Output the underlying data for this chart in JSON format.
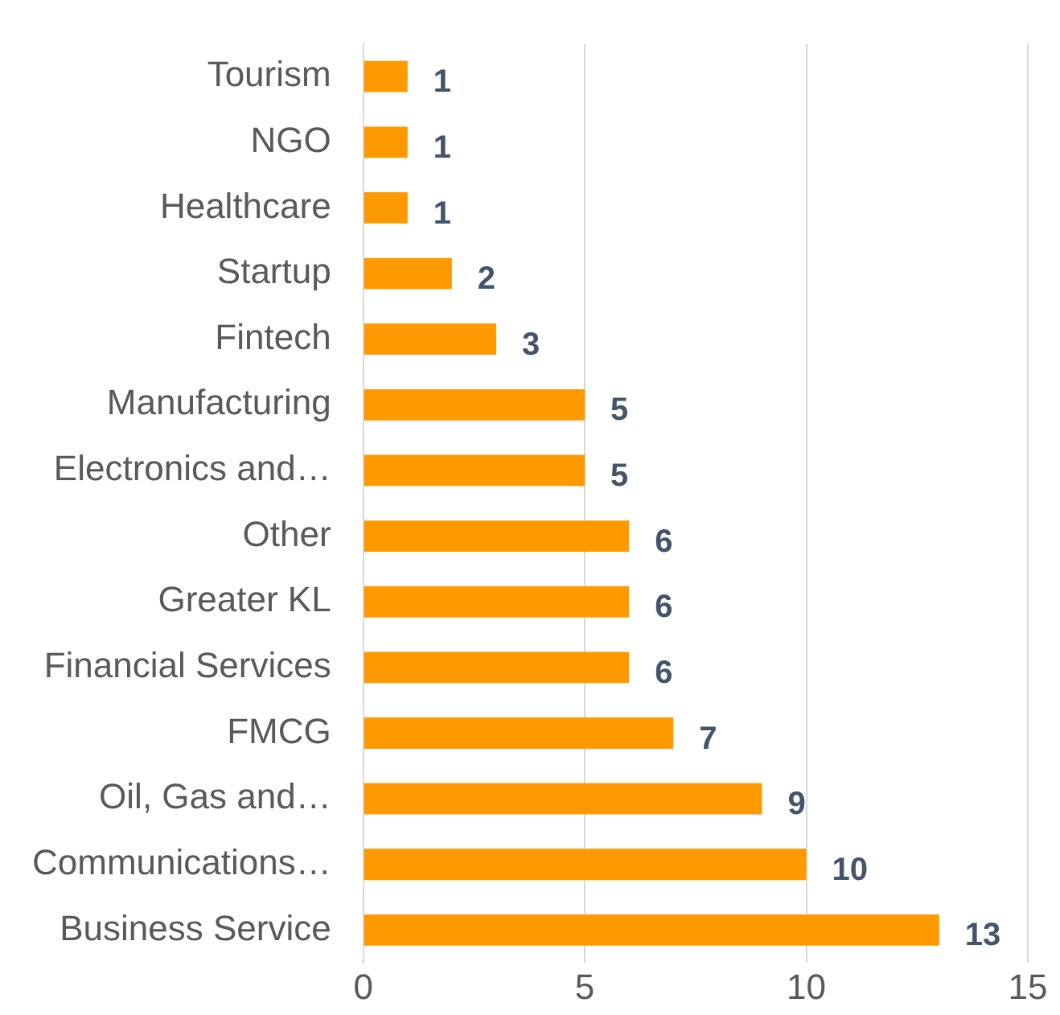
{
  "chart_data": {
    "type": "bar",
    "orientation": "horizontal",
    "categories": [
      "Tourism",
      "NGO",
      "Healthcare",
      "Startup",
      "Fintech",
      "Manufacturing",
      "Electronics and…",
      "Other",
      "Greater KL",
      "Financial Services",
      "FMCG",
      "Oil, Gas and…",
      "Communications…",
      "Business Service"
    ],
    "values": [
      1,
      1,
      1,
      2,
      3,
      5,
      5,
      6,
      6,
      6,
      7,
      9,
      10,
      13
    ],
    "color": "#ff9900",
    "xlim": [
      0,
      15
    ],
    "xticks": [
      0,
      5,
      10,
      15
    ],
    "grid": "x",
    "data_labels": true,
    "legend": false
  }
}
